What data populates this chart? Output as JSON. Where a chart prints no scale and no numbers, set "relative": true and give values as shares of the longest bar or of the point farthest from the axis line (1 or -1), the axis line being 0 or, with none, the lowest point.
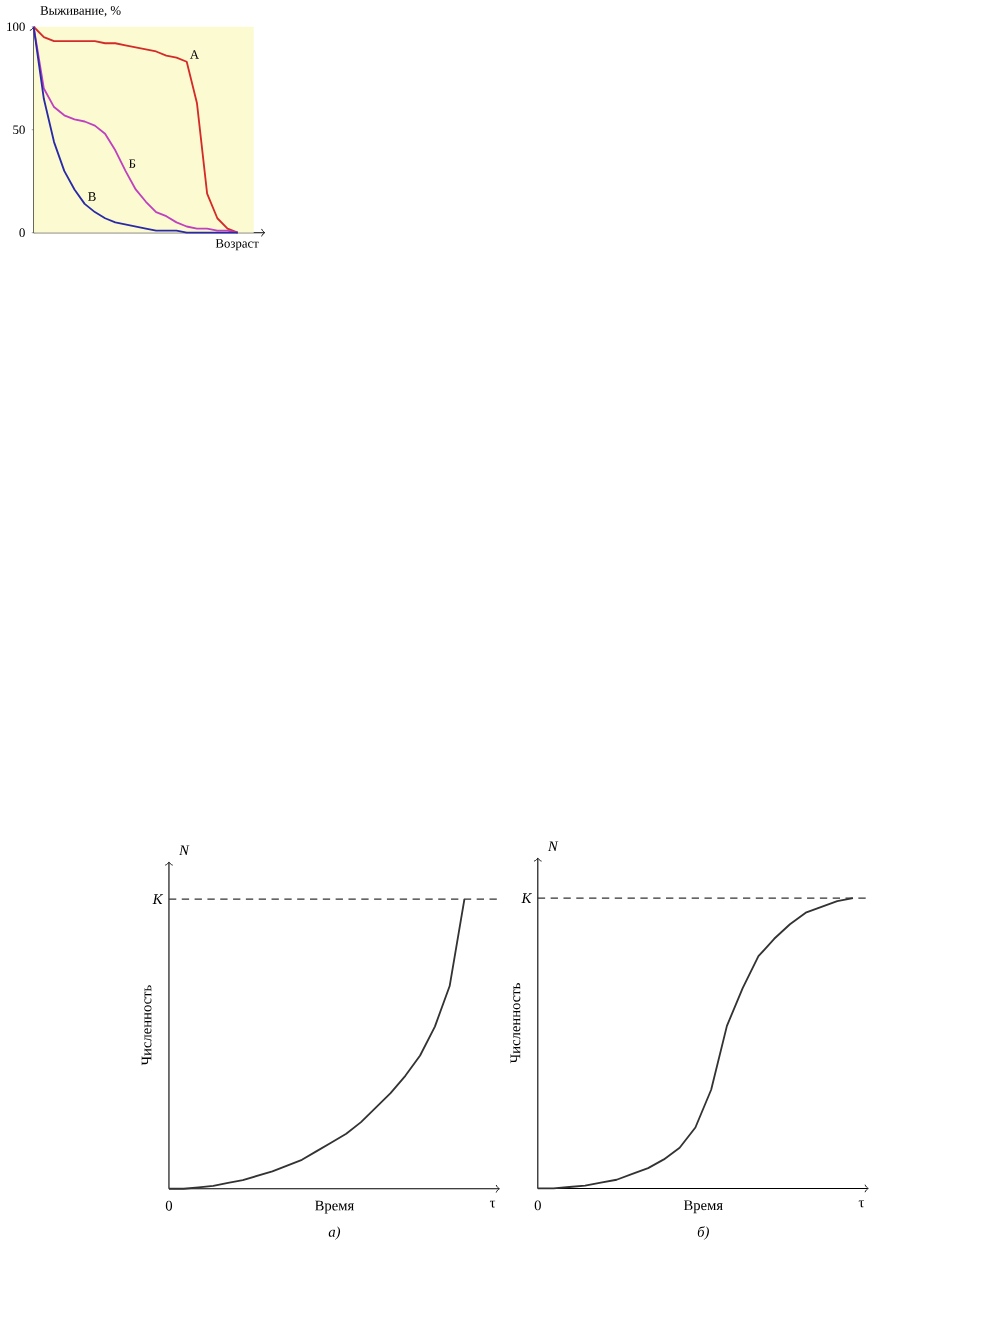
{
  "chart_data": [
    {
      "type": "line",
      "xlabel": "Возраст",
      "ylabel": "Выживание, %",
      "ylim": [
        0,
        100
      ],
      "yticks": [
        0,
        50,
        100
      ],
      "categories": [
        null,
        null,
        null,
        null,
        null,
        null,
        null,
        null,
        null,
        null,
        null,
        null,
        null,
        null,
        null,
        null,
        null,
        null,
        null,
        null,
        null
      ],
      "series": [
        {
          "name": "А",
          "color": "#d42a2a",
          "values": [
            100,
            95,
            93,
            93,
            93,
            93,
            93,
            92,
            92,
            91,
            90,
            89,
            88,
            86,
            85,
            83,
            63,
            19,
            7,
            2,
            0
          ]
        },
        {
          "name": "Б",
          "color": "#c040c0",
          "values": [
            100,
            70,
            61,
            57,
            55,
            54,
            52,
            48,
            40,
            30,
            21,
            15,
            10,
            8,
            5,
            3,
            2,
            2,
            1,
            1,
            0
          ]
        },
        {
          "name": "В",
          "color": "#2a2aa8",
          "values": [
            100,
            65,
            44,
            30,
            21,
            14,
            10,
            7,
            5,
            4,
            3,
            2,
            1,
            1,
            1,
            0,
            0,
            0,
            0,
            0,
            0
          ]
        }
      ]
    },
    {
      "type": "line",
      "relative": true,
      "xlabel": "Время",
      "ylabel": "Численность",
      "categories": [
        null,
        null,
        null,
        null,
        null,
        null,
        null,
        null,
        null,
        null,
        null,
        null,
        null,
        null,
        null,
        null,
        null,
        null,
        null,
        null,
        null
      ],
      "series": [
        {
          "color": "#333333",
          "values": [
            0,
            0,
            0.005,
            0.01,
            0.02,
            0.03,
            0.045,
            0.06,
            0.08,
            0.1,
            0.13,
            0.16,
            0.19,
            0.23,
            0.28,
            0.33,
            0.39,
            0.46,
            0.56,
            0.7,
            1
          ]
        }
      ],
      "ref_lines": [
        {
          "axis": "y",
          "value": 1,
          "label": "K",
          "line_style": "dashed",
          "color": "#333333"
        }
      ],
      "annotations": [
        "N",
        "0",
        "τ",
        "а)"
      ]
    },
    {
      "type": "line",
      "relative": true,
      "xlabel": "Время",
      "ylabel": "Численность",
      "categories": [
        null,
        null,
        null,
        null,
        null,
        null,
        null,
        null,
        null,
        null,
        null,
        null,
        null,
        null,
        null,
        null,
        null,
        null,
        null,
        null,
        null
      ],
      "series": [
        {
          "color": "#333333",
          "values": [
            0,
            0,
            0.005,
            0.01,
            0.02,
            0.03,
            0.05,
            0.07,
            0.1,
            0.14,
            0.21,
            0.34,
            0.56,
            0.69,
            0.8,
            0.86,
            0.91,
            0.95,
            0.97,
            0.99,
            1
          ]
        }
      ],
      "ref_lines": [
        {
          "axis": "y",
          "value": 1,
          "label": "K",
          "line_style": "dashed",
          "color": "#333333"
        }
      ],
      "annotations": [
        "N",
        "0",
        "τ",
        "б)"
      ]
    }
  ]
}
